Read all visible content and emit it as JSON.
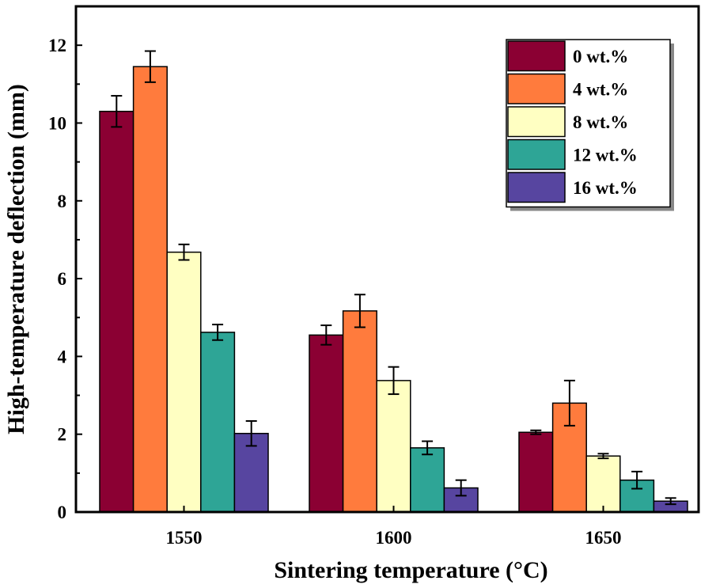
{
  "chart_data": {
    "type": "bar",
    "title": "",
    "xlabel": "Sintering temperature (°C)",
    "ylabel": "High-temperature deflection (mm)",
    "ylim": [
      0,
      13
    ],
    "yticks": [
      "0",
      "2",
      "4",
      "6",
      "8",
      "10",
      "12"
    ],
    "categories": [
      "1550",
      "1600",
      "1650"
    ],
    "legend_position": "top-right",
    "series": [
      {
        "name": "0 wt.%",
        "color": "#8b0033",
        "values": [
          10.3,
          4.55,
          2.05
        ],
        "errors": [
          0.4,
          0.25,
          0.05
        ]
      },
      {
        "name": "4 wt.%",
        "color": "#ff7b3d",
        "values": [
          11.45,
          5.17,
          2.8
        ],
        "errors": [
          0.4,
          0.42,
          0.58
        ]
      },
      {
        "name": "8 wt.%",
        "color": "#ffffc2",
        "values": [
          6.68,
          3.38,
          1.44
        ],
        "errors": [
          0.2,
          0.35,
          0.06
        ]
      },
      {
        "name": "12 wt.%",
        "color": "#2ea596",
        "values": [
          4.62,
          1.65,
          0.82
        ],
        "errors": [
          0.2,
          0.17,
          0.22
        ]
      },
      {
        "name": "16 wt.%",
        "color": "#5745a0",
        "values": [
          2.02,
          0.62,
          0.28
        ],
        "errors": [
          0.32,
          0.2,
          0.08
        ]
      }
    ]
  }
}
